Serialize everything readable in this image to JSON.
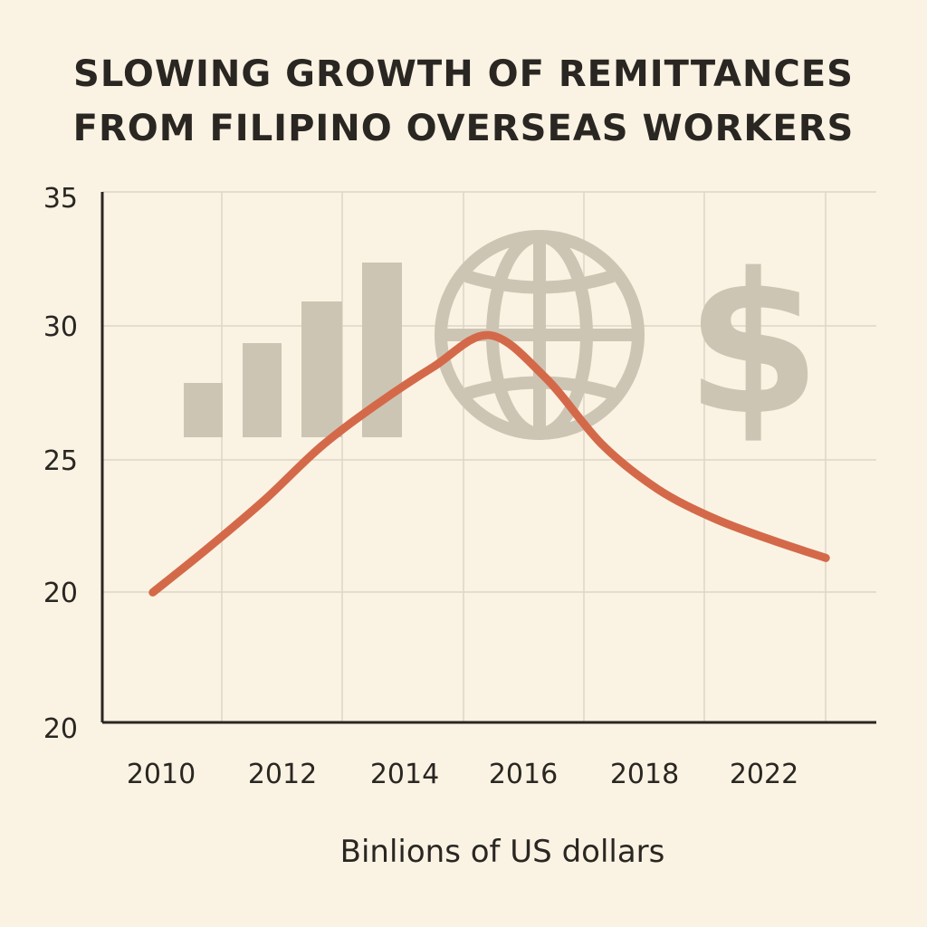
{
  "title_lines": [
    "SLOWING GROWTH OF REMITTANCES",
    "FROM FILIPINO OVERSEAS WORKERS"
  ],
  "colors": {
    "background": "#faf3e3",
    "line": "#d4694a",
    "grid": "#ddd6c6",
    "axis": "#2a2622",
    "icons": "#cdc5b4"
  },
  "decorations": [
    "bar-chart-icon",
    "globe-icon",
    "dollar-sign-icon"
  ],
  "chart_data": {
    "type": "line",
    "title": "SLOWING GROWTH OF REMITTANCES FROM FILIPINO OVERSEAS WORKERS",
    "xlabel": "Binlions of US dollars",
    "ylabel": "",
    "y_tick_labels": [
      "35",
      "30",
      "25",
      "20",
      "20"
    ],
    "x_tick_labels": [
      "2010",
      "2012",
      "2014",
      "2016",
      "2018",
      "2022"
    ],
    "ylim": [
      15,
      35
    ],
    "grid": true,
    "legend": "none",
    "series": [
      {
        "x": [
          2010,
          2011,
          2012,
          2013,
          2014,
          2015,
          2016,
          2017,
          2018,
          2019,
          2020,
          2021,
          2022
        ],
        "values": [
          19.9,
          21.6,
          23.4,
          25.4,
          27.0,
          28.4,
          29.6,
          28.0,
          25.5,
          23.8,
          22.7,
          21.9,
          21.2
        ]
      }
    ]
  }
}
